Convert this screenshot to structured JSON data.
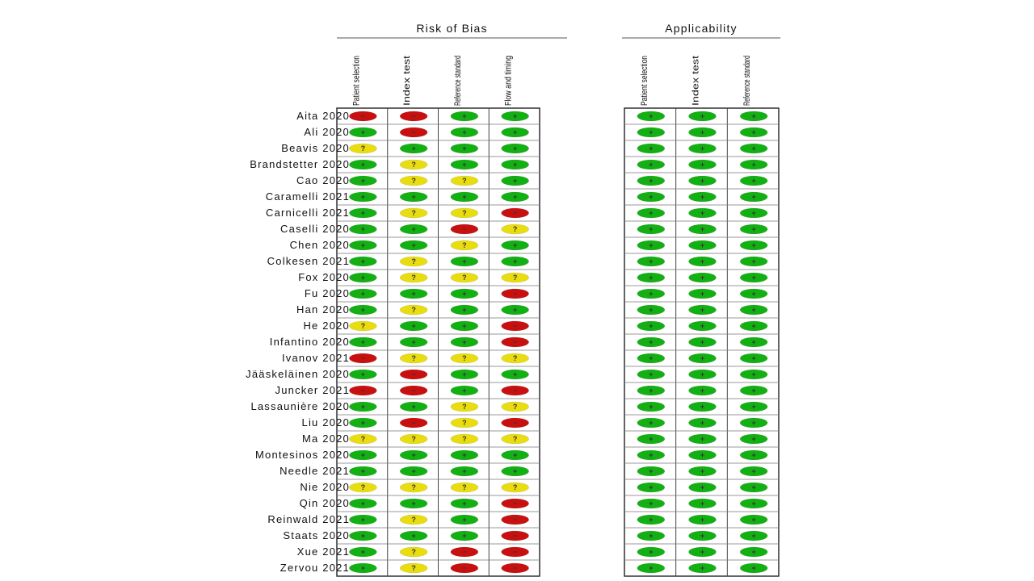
{
  "chart_data": {
    "type": "table",
    "groups": [
      {
        "title": "Risk of Bias",
        "domains": [
          "Patient selection",
          "Index test",
          "Reference standard",
          "Flow and timing"
        ]
      },
      {
        "title": "Applicability",
        "domains": [
          "Patient selection",
          "Index test",
          "Reference standard"
        ]
      }
    ],
    "judgement_colors": {
      "low": "#13b013",
      "unclear": "#e9dd10",
      "high": "#c91010"
    },
    "judgement_symbols": {
      "low": "+",
      "unclear": "?",
      "high": "−"
    },
    "studies": [
      {
        "name": "Aita 2020",
        "rob": [
          "high",
          "high",
          "low",
          "low"
        ],
        "app": [
          "low",
          "low",
          "low"
        ]
      },
      {
        "name": "Ali 2020",
        "rob": [
          "low",
          "high",
          "low",
          "low"
        ],
        "app": [
          "low",
          "low",
          "low"
        ]
      },
      {
        "name": "Beavis 2020",
        "rob": [
          "unclear",
          "low",
          "low",
          "low"
        ],
        "app": [
          "low",
          "low",
          "low"
        ]
      },
      {
        "name": "Brandstetter 2020",
        "rob": [
          "low",
          "unclear",
          "low",
          "low"
        ],
        "app": [
          "low",
          "low",
          "low"
        ]
      },
      {
        "name": "Cao 2020",
        "rob": [
          "low",
          "unclear",
          "unclear",
          "low"
        ],
        "app": [
          "low",
          "low",
          "low"
        ]
      },
      {
        "name": "Caramelli 2021",
        "rob": [
          "low",
          "low",
          "low",
          "low"
        ],
        "app": [
          "low",
          "low",
          "low"
        ]
      },
      {
        "name": "Carnicelli 2021",
        "rob": [
          "low",
          "unclear",
          "unclear",
          "high"
        ],
        "app": [
          "low",
          "low",
          "low"
        ]
      },
      {
        "name": "Caselli 2020",
        "rob": [
          "low",
          "low",
          "high",
          "unclear"
        ],
        "app": [
          "low",
          "low",
          "low"
        ]
      },
      {
        "name": "Chen 2020",
        "rob": [
          "low",
          "low",
          "unclear",
          "low"
        ],
        "app": [
          "low",
          "low",
          "low"
        ]
      },
      {
        "name": "Colkesen 2021",
        "rob": [
          "low",
          "unclear",
          "low",
          "low"
        ],
        "app": [
          "low",
          "low",
          "low"
        ]
      },
      {
        "name": "Fox 2020",
        "rob": [
          "low",
          "unclear",
          "unclear",
          "unclear"
        ],
        "app": [
          "low",
          "low",
          "low"
        ]
      },
      {
        "name": "Fu 2020",
        "rob": [
          "low",
          "low",
          "low",
          "high"
        ],
        "app": [
          "low",
          "low",
          "low"
        ]
      },
      {
        "name": "Han 2020",
        "rob": [
          "low",
          "unclear",
          "low",
          "low"
        ],
        "app": [
          "low",
          "low",
          "low"
        ]
      },
      {
        "name": "He 2020",
        "rob": [
          "unclear",
          "low",
          "low",
          "high"
        ],
        "app": [
          "low",
          "low",
          "low"
        ]
      },
      {
        "name": "Infantino 2020",
        "rob": [
          "low",
          "low",
          "low",
          "high"
        ],
        "app": [
          "low",
          "low",
          "low"
        ]
      },
      {
        "name": "Ivanov 2021",
        "rob": [
          "high",
          "unclear",
          "unclear",
          "unclear"
        ],
        "app": [
          "low",
          "low",
          "low"
        ]
      },
      {
        "name": "Jääskeläinen 2020",
        "rob": [
          "low",
          "high",
          "low",
          "low"
        ],
        "app": [
          "low",
          "low",
          "low"
        ]
      },
      {
        "name": "Juncker 2021",
        "rob": [
          "high",
          "high",
          "low",
          "high"
        ],
        "app": [
          "low",
          "low",
          "low"
        ]
      },
      {
        "name": "Lassaunière 2020",
        "rob": [
          "low",
          "low",
          "unclear",
          "unclear"
        ],
        "app": [
          "low",
          "low",
          "low"
        ]
      },
      {
        "name": "Liu 2020",
        "rob": [
          "low",
          "high",
          "unclear",
          "high"
        ],
        "app": [
          "low",
          "low",
          "low"
        ]
      },
      {
        "name": "Ma 2020",
        "rob": [
          "unclear",
          "unclear",
          "unclear",
          "unclear"
        ],
        "app": [
          "low",
          "low",
          "low"
        ]
      },
      {
        "name": "Montesinos 2020",
        "rob": [
          "low",
          "low",
          "low",
          "low"
        ],
        "app": [
          "low",
          "low",
          "low"
        ]
      },
      {
        "name": "Needle 2021",
        "rob": [
          "low",
          "low",
          "low",
          "low"
        ],
        "app": [
          "low",
          "low",
          "low"
        ]
      },
      {
        "name": "Nie 2020",
        "rob": [
          "unclear",
          "unclear",
          "unclear",
          "unclear"
        ],
        "app": [
          "low",
          "low",
          "low"
        ]
      },
      {
        "name": "Qin 2020",
        "rob": [
          "low",
          "low",
          "low",
          "high"
        ],
        "app": [
          "low",
          "low",
          "low"
        ]
      },
      {
        "name": "Reinwald 2021",
        "rob": [
          "low",
          "unclear",
          "low",
          "high"
        ],
        "app": [
          "low",
          "low",
          "low"
        ]
      },
      {
        "name": "Staats 2020",
        "rob": [
          "low",
          "low",
          "low",
          "high"
        ],
        "app": [
          "low",
          "low",
          "low"
        ]
      },
      {
        "name": "Xue 2021",
        "rob": [
          "low",
          "unclear",
          "high",
          "high"
        ],
        "app": [
          "low",
          "low",
          "low"
        ]
      },
      {
        "name": "Zervou 2021",
        "rob": [
          "low",
          "unclear",
          "high",
          "high"
        ],
        "app": [
          "low",
          "low",
          "low"
        ]
      }
    ]
  }
}
